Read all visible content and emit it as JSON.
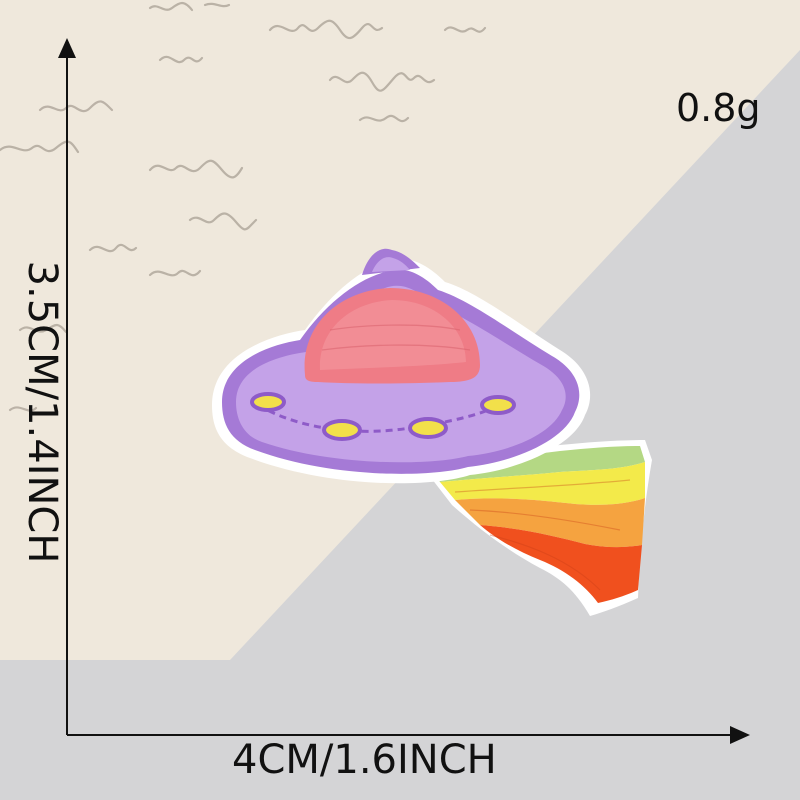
{
  "weight": "0.8g",
  "dimensions": {
    "width": "4CM/1.6INCH",
    "height": "3.5CM/1.4INCH"
  },
  "colors": {
    "background": "#d4d4d6",
    "paper": "#efe8dc",
    "patch_purple": "#a57ad6",
    "patch_pink": "#ef7c86",
    "lights_yellow": "#f2e04a",
    "stripe_green": "#b4d884",
    "stripe_yellow": "#f3ea4a",
    "stripe_orange": "#f5a340",
    "stripe_red": "#f0501e"
  },
  "icons": [
    "ufo-patch",
    "rainbow-trail",
    "width-arrow",
    "height-arrow"
  ]
}
